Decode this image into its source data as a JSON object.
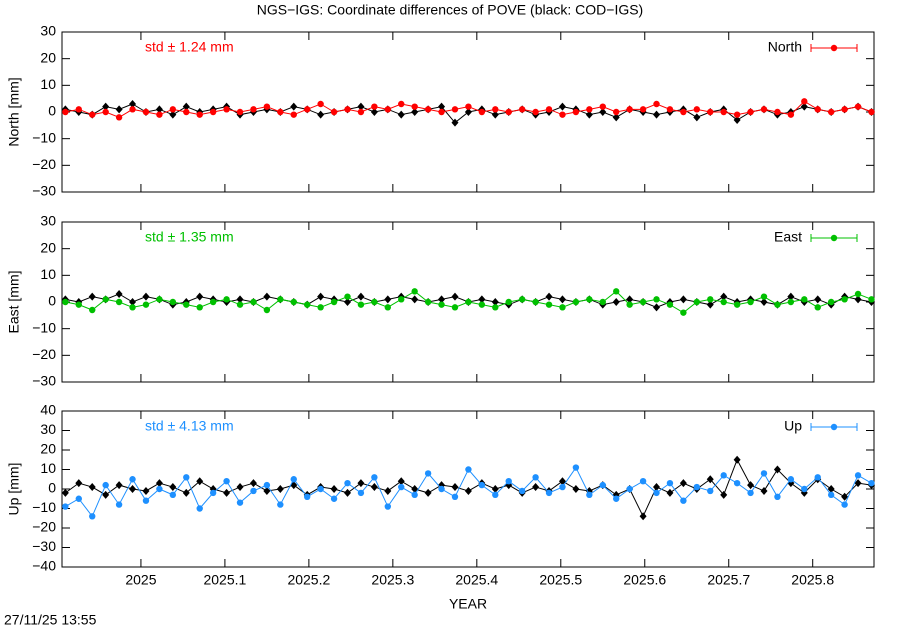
{
  "header": {
    "title": "NGS−IGS: Coordinate differences of POVE (black: COD−IGS)",
    "timestamp": "27/11/25 13:55"
  },
  "chart_data": [
    {
      "type": "line",
      "ylabel": "North [mm]",
      "annotation": "std ± 1.24 mm",
      "xlim": [
        2024.906,
        2025.873
      ],
      "xticks": [
        2025,
        2025.1,
        2025.2,
        2025.3,
        2025.4,
        2025.5,
        2025.6,
        2025.7,
        2025.8
      ],
      "ylim": [
        -30,
        30
      ],
      "yticks": [
        {
          "value": -30,
          "label": "−30"
        },
        {
          "value": -20,
          "label": "−20"
        },
        {
          "value": -10,
          "label": "−10"
        },
        0,
        10,
        20,
        30
      ],
      "x": [
        2024.91,
        2024.926,
        2024.942,
        2024.958,
        2024.974,
        2024.99,
        2025.006,
        2025.022,
        2025.038,
        2025.054,
        2025.07,
        2025.086,
        2025.102,
        2025.118,
        2025.134,
        2025.15,
        2025.166,
        2025.182,
        2025.198,
        2025.214,
        2025.23,
        2025.246,
        2025.262,
        2025.278,
        2025.294,
        2025.31,
        2025.326,
        2025.342,
        2025.358,
        2025.374,
        2025.39,
        2025.406,
        2025.422,
        2025.438,
        2025.454,
        2025.47,
        2025.486,
        2025.502,
        2025.518,
        2025.534,
        2025.55,
        2025.566,
        2025.582,
        2025.598,
        2025.614,
        2025.63,
        2025.646,
        2025.662,
        2025.678,
        2025.694,
        2025.71,
        2025.726,
        2025.742,
        2025.758,
        2025.774,
        2025.79,
        2025.806,
        2025.822,
        2025.838,
        2025.854,
        2025.87
      ],
      "series": [
        {
          "color": "#000000",
          "values": [
            1,
            0,
            -1,
            2,
            1,
            3,
            0,
            1,
            -1,
            2,
            0,
            1,
            2,
            -1,
            0,
            1,
            0,
            2,
            1,
            -1,
            0,
            1,
            2,
            0,
            1,
            -1,
            0,
            1,
            2,
            -4,
            0,
            1,
            -1,
            0,
            1,
            -1,
            0,
            2,
            1,
            -1,
            0,
            -2,
            1,
            0,
            -1,
            0,
            1,
            -2,
            0,
            1,
            -3,
            0,
            1,
            -1,
            0,
            2,
            1,
            0,
            1,
            2,
            0
          ]
        },
        {
          "name": "North",
          "color": "#ff0000",
          "values": [
            0,
            1,
            -1,
            0,
            -2,
            1,
            0,
            -1,
            1,
            0,
            -1,
            0,
            1,
            0,
            1,
            2,
            0,
            -1,
            1,
            3,
            0,
            1,
            0,
            2,
            1,
            3,
            2,
            1,
            0,
            1,
            2,
            0,
            1,
            0,
            1,
            0,
            1,
            -1,
            0,
            1,
            2,
            0,
            1,
            1,
            3,
            1,
            0,
            1,
            0,
            0,
            -1,
            0,
            1,
            0,
            -1,
            4,
            1,
            0,
            1,
            2,
            0
          ]
        }
      ]
    },
    {
      "type": "line",
      "ylabel": "East [mm]",
      "annotation": "std ± 1.35 mm",
      "xlim": [
        2024.906,
        2025.873
      ],
      "xticks": [
        2025,
        2025.1,
        2025.2,
        2025.3,
        2025.4,
        2025.5,
        2025.6,
        2025.7,
        2025.8
      ],
      "ylim": [
        -30,
        30
      ],
      "yticks": [
        {
          "value": -30,
          "label": "−30"
        },
        {
          "value": -20,
          "label": "−20"
        },
        {
          "value": -10,
          "label": "−10"
        },
        0,
        10,
        20,
        30
      ],
      "x": [
        2024.91,
        2024.926,
        2024.942,
        2024.958,
        2024.974,
        2024.99,
        2025.006,
        2025.022,
        2025.038,
        2025.054,
        2025.07,
        2025.086,
        2025.102,
        2025.118,
        2025.134,
        2025.15,
        2025.166,
        2025.182,
        2025.198,
        2025.214,
        2025.23,
        2025.246,
        2025.262,
        2025.278,
        2025.294,
        2025.31,
        2025.326,
        2025.342,
        2025.358,
        2025.374,
        2025.39,
        2025.406,
        2025.422,
        2025.438,
        2025.454,
        2025.47,
        2025.486,
        2025.502,
        2025.518,
        2025.534,
        2025.55,
        2025.566,
        2025.582,
        2025.598,
        2025.614,
        2025.63,
        2025.646,
        2025.662,
        2025.678,
        2025.694,
        2025.71,
        2025.726,
        2025.742,
        2025.758,
        2025.774,
        2025.79,
        2025.806,
        2025.822,
        2025.838,
        2025.854,
        2025.87
      ],
      "series": [
        {
          "color": "#000000",
          "values": [
            1,
            0,
            2,
            1,
            3,
            0,
            2,
            1,
            -1,
            0,
            2,
            1,
            0,
            1,
            0,
            2,
            1,
            0,
            -1,
            2,
            1,
            0,
            2,
            0,
            1,
            2,
            1,
            0,
            1,
            2,
            0,
            1,
            0,
            -1,
            1,
            0,
            2,
            1,
            0,
            1,
            -1,
            0,
            1,
            0,
            -2,
            0,
            1,
            0,
            -1,
            2,
            0,
            1,
            0,
            -1,
            2,
            0,
            1,
            -1,
            2,
            1,
            0
          ]
        },
        {
          "name": "East",
          "color": "#00c000",
          "values": [
            0,
            -1,
            -3,
            1,
            0,
            -2,
            -1,
            1,
            0,
            -1,
            -2,
            0,
            1,
            -1,
            0,
            -3,
            1,
            0,
            -1,
            -2,
            0,
            2,
            -1,
            0,
            -2,
            1,
            4,
            0,
            -1,
            -2,
            0,
            -1,
            -2,
            0,
            1,
            0,
            -1,
            -2,
            0,
            1,
            0,
            4,
            -1,
            0,
            1,
            -1,
            -4,
            0,
            1,
            0,
            -1,
            0,
            2,
            -1,
            0,
            1,
            -2,
            0,
            1,
            3,
            1
          ]
        }
      ]
    },
    {
      "type": "line",
      "ylabel": "Up [mm]",
      "annotation": "std ± 4.13 mm",
      "xlabel": "YEAR",
      "xlim": [
        2024.906,
        2025.873
      ],
      "xticks": [
        2025,
        2025.1,
        2025.2,
        2025.3,
        2025.4,
        2025.5,
        2025.6,
        2025.7,
        2025.8
      ],
      "ylim": [
        -40,
        40
      ],
      "yticks": [
        {
          "value": -40,
          "label": "−40"
        },
        {
          "value": -30,
          "label": "−30"
        },
        {
          "value": -20,
          "label": "−20"
        },
        {
          "value": -10,
          "label": "−10"
        },
        0,
        10,
        20,
        30,
        40
      ],
      "x": [
        2024.91,
        2024.926,
        2024.942,
        2024.958,
        2024.974,
        2024.99,
        2025.006,
        2025.022,
        2025.038,
        2025.054,
        2025.07,
        2025.086,
        2025.102,
        2025.118,
        2025.134,
        2025.15,
        2025.166,
        2025.182,
        2025.198,
        2025.214,
        2025.23,
        2025.246,
        2025.262,
        2025.278,
        2025.294,
        2025.31,
        2025.326,
        2025.342,
        2025.358,
        2025.374,
        2025.39,
        2025.406,
        2025.422,
        2025.438,
        2025.454,
        2025.47,
        2025.486,
        2025.502,
        2025.518,
        2025.534,
        2025.55,
        2025.566,
        2025.582,
        2025.598,
        2025.614,
        2025.63,
        2025.646,
        2025.662,
        2025.678,
        2025.694,
        2025.71,
        2025.726,
        2025.742,
        2025.758,
        2025.774,
        2025.79,
        2025.806,
        2025.822,
        2025.838,
        2025.854,
        2025.87
      ],
      "series": [
        {
          "color": "#000000",
          "values": [
            -2,
            3,
            1,
            -3,
            2,
            0,
            -1,
            3,
            1,
            -2,
            4,
            0,
            -2,
            1,
            3,
            -1,
            0,
            2,
            -3,
            1,
            0,
            -2,
            3,
            1,
            -1,
            4,
            0,
            -2,
            2,
            1,
            -1,
            3,
            0,
            2,
            -2,
            1,
            -1,
            4,
            0,
            -1,
            2,
            -3,
            0,
            -14,
            1,
            -2,
            3,
            0,
            5,
            -3,
            15,
            2,
            -1,
            10,
            3,
            -2,
            5,
            0,
            -4,
            3,
            2
          ]
        },
        {
          "name": "Up",
          "color": "#1e90ff",
          "values": [
            -9,
            -5,
            -14,
            2,
            -8,
            5,
            -6,
            0,
            -3,
            6,
            -10,
            -2,
            4,
            -7,
            -1,
            2,
            -8,
            5,
            -4,
            0,
            -5,
            3,
            -2,
            6,
            -9,
            1,
            -3,
            8,
            0,
            -4,
            10,
            2,
            -3,
            4,
            -1,
            6,
            -2,
            1,
            11,
            -3,
            2,
            -5,
            0,
            4,
            -2,
            3,
            -6,
            1,
            -1,
            7,
            3,
            -2,
            8,
            -4,
            5,
            0,
            6,
            -3,
            -8,
            7,
            3
          ]
        }
      ]
    }
  ]
}
